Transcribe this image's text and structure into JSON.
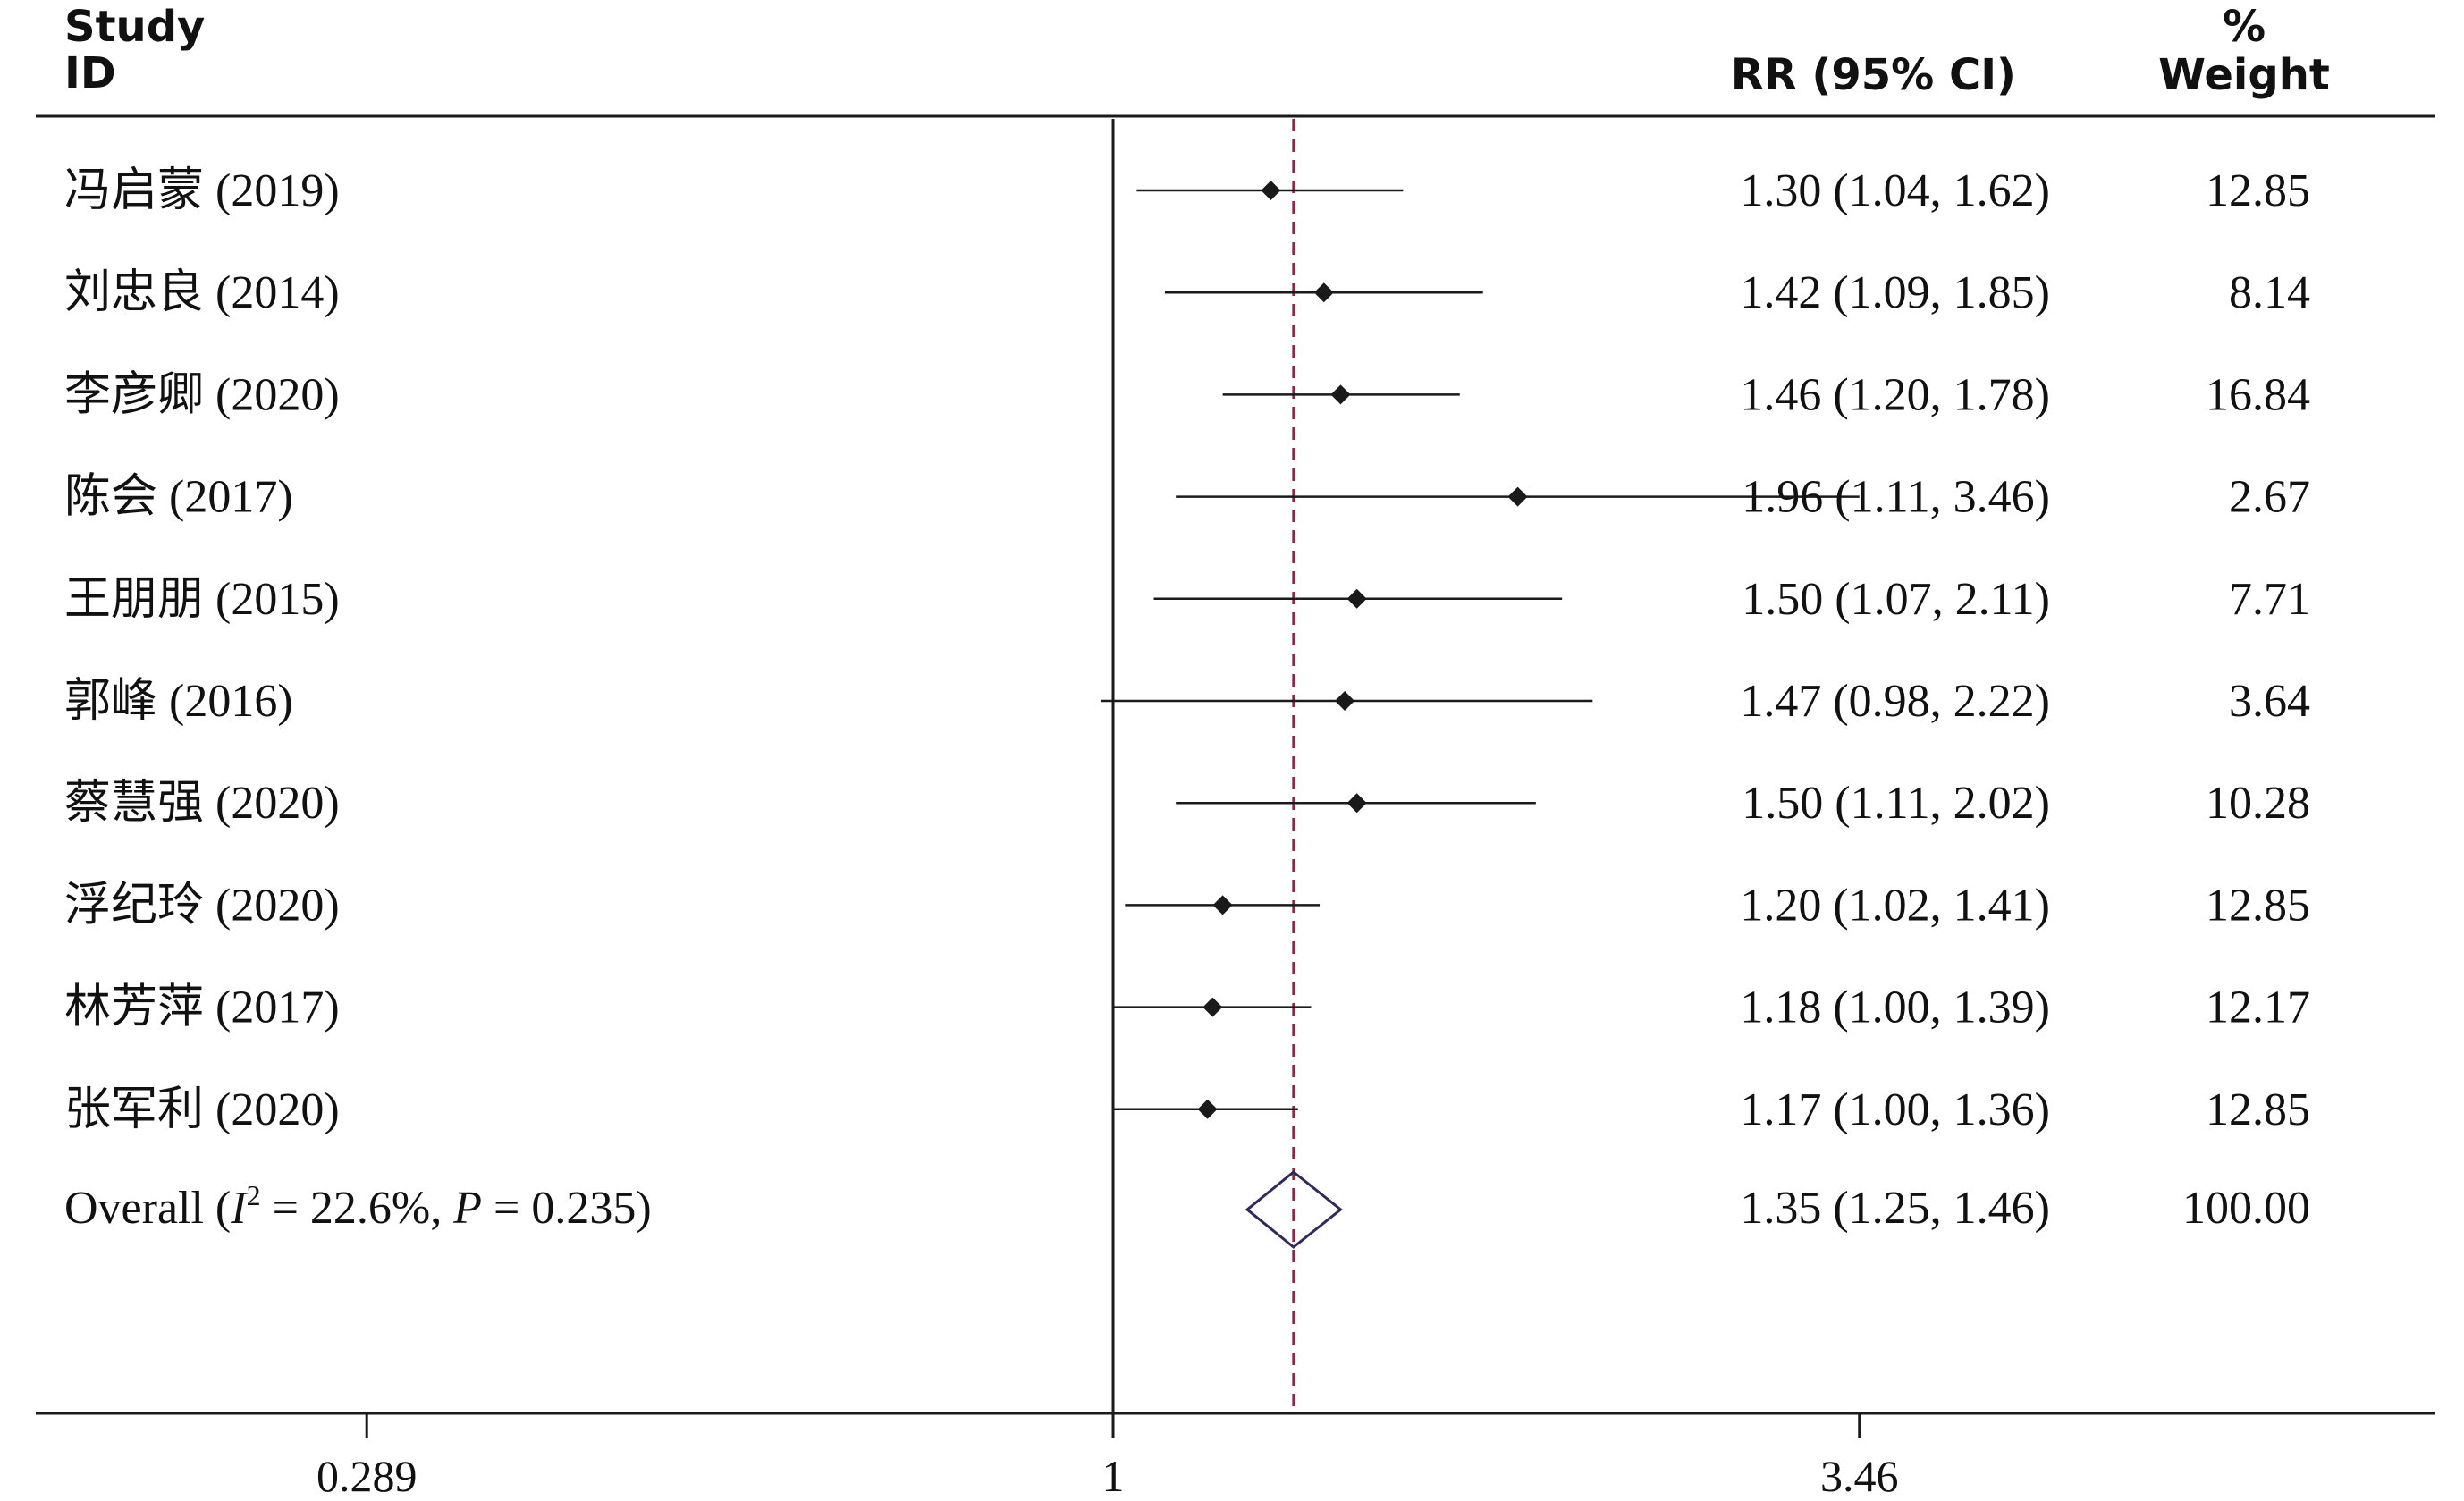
{
  "header": {
    "study_line1": "Study",
    "study_line2": "ID",
    "rr_label": "RR (95% CI)",
    "weight_line1": "%",
    "weight_line2": "Weight"
  },
  "chart_data": {
    "type": "forest",
    "scale": "log",
    "null_value": 1,
    "overall_estimate_line": 1.35,
    "ticks": [
      {
        "value": 0.289,
        "label": "0.289"
      },
      {
        "value": 1,
        "label": "1"
      },
      {
        "value": 3.46,
        "label": "3.46"
      }
    ],
    "studies": [
      {
        "id": "冯启蒙 (2019)",
        "rr": 1.3,
        "lo": 1.04,
        "hi": 1.62,
        "ci_text": "1.30 (1.04, 1.62)",
        "weight": "12.85"
      },
      {
        "id": "刘忠良 (2014)",
        "rr": 1.42,
        "lo": 1.09,
        "hi": 1.85,
        "ci_text": "1.42 (1.09, 1.85)",
        "weight": "8.14"
      },
      {
        "id": "李彦卿 (2020)",
        "rr": 1.46,
        "lo": 1.2,
        "hi": 1.78,
        "ci_text": "1.46 (1.20, 1.78)",
        "weight": "16.84"
      },
      {
        "id": "陈会 (2017)",
        "rr": 1.96,
        "lo": 1.11,
        "hi": 3.46,
        "ci_text": "1.96 (1.11, 3.46)",
        "weight": "2.67"
      },
      {
        "id": "王朋朋 (2015)",
        "rr": 1.5,
        "lo": 1.07,
        "hi": 2.11,
        "ci_text": "1.50 (1.07, 2.11)",
        "weight": "7.71"
      },
      {
        "id": "郭峰 (2016)",
        "rr": 1.47,
        "lo": 0.98,
        "hi": 2.22,
        "ci_text": "1.47 (0.98, 2.22)",
        "weight": "3.64"
      },
      {
        "id": "蔡慧强 (2020)",
        "rr": 1.5,
        "lo": 1.11,
        "hi": 2.02,
        "ci_text": "1.50 (1.11, 2.02)",
        "weight": "10.28"
      },
      {
        "id": "浮纪玲 (2020)",
        "rr": 1.2,
        "lo": 1.02,
        "hi": 1.41,
        "ci_text": "1.20 (1.02, 1.41)",
        "weight": "12.85"
      },
      {
        "id": "林芳萍 (2017)",
        "rr": 1.18,
        "lo": 1.0,
        "hi": 1.39,
        "ci_text": "1.18 (1.00, 1.39)",
        "weight": "12.17"
      },
      {
        "id": "张军利 (2020)",
        "rr": 1.17,
        "lo": 1.0,
        "hi": 1.36,
        "ci_text": "1.17 (1.00, 1.36)",
        "weight": "12.85"
      }
    ],
    "overall": {
      "label_prefix": "Overall  (",
      "i2_symbol": "I",
      "i2_sup": "2",
      "i2_value": " = 22.6%, ",
      "p_symbol": "P",
      "p_value": " = 0.235)",
      "rr": 1.35,
      "lo": 1.25,
      "hi": 1.46,
      "ci_text": "1.35 (1.25, 1.46)",
      "weight": "100.00"
    },
    "colors": {
      "marker": "#1a1a1a",
      "line": "#1a1a1a",
      "overall_diamond": "#2e2a5a",
      "overall_line": "#8a2a48"
    }
  }
}
